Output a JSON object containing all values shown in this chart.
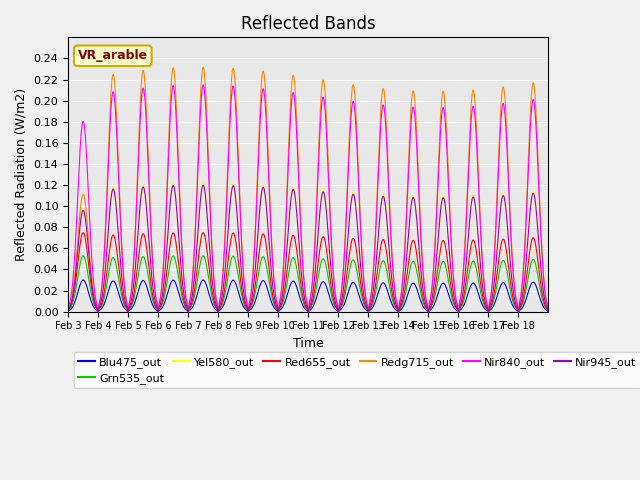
{
  "title": "Reflected Bands",
  "xlabel": "Time",
  "ylabel": "Reflected Radiation (W/m2)",
  "annotation": "VR_arable",
  "ylim": [
    0,
    0.26
  ],
  "yticks": [
    0.0,
    0.02,
    0.04,
    0.06,
    0.08,
    0.1,
    0.12,
    0.14,
    0.16,
    0.18,
    0.2,
    0.22,
    0.24
  ],
  "x_tick_labels": [
    "Feb 3",
    "Feb 4",
    "Feb 5",
    "Feb 6",
    "Feb 7",
    "Feb 8",
    "Feb 9",
    "Feb 10",
    "Feb 11",
    "Feb 12",
    "Feb 13",
    "Feb 14",
    "Feb 15",
    "Feb 16",
    "Feb 17",
    "Feb 18"
  ],
  "n_days": 16,
  "pts_per_day": 48,
  "background_color": "#e8e8e8",
  "grid_color": "white",
  "series": [
    {
      "name": "Blu475_out",
      "color": "#0000ff",
      "peak": 0.03,
      "first_scale": 1.0
    },
    {
      "name": "Grn535_out",
      "color": "#00cc00",
      "peak": 0.053,
      "first_scale": 1.0
    },
    {
      "name": "Yel580_out",
      "color": "#ffff00",
      "peak": 0.122,
      "first_scale": 0.8
    },
    {
      "name": "Red655_out",
      "color": "#ff0000",
      "peak": 0.075,
      "first_scale": 1.0
    },
    {
      "name": "Redg715_out",
      "color": "#ff8800",
      "peak": 0.232,
      "first_scale": 0.48
    },
    {
      "name": "Nir840_out",
      "color": "#ff00ff",
      "peak": 0.215,
      "first_scale": 0.84
    },
    {
      "name": "Nir945_out",
      "color": "#9900cc",
      "peak": 0.12,
      "first_scale": 0.8
    }
  ]
}
